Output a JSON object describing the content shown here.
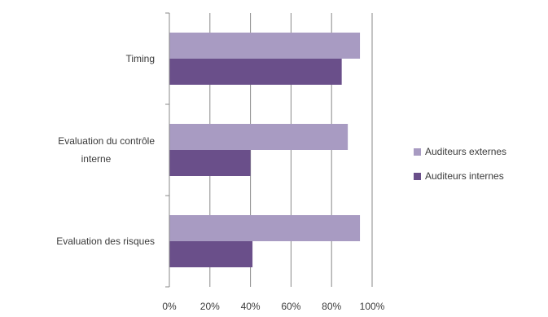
{
  "chart_data": {
    "type": "bar",
    "orientation": "horizontal",
    "categories": [
      "Timing",
      "Evaluation du contrôle interne",
      "Evaluation des risques"
    ],
    "category_label_lines": [
      [
        "Timing"
      ],
      [
        "Evaluation du contrôle",
        "interne"
      ],
      [
        "Evaluation des risques"
      ]
    ],
    "series": [
      {
        "name": "Auditeurs externes",
        "values": [
          94,
          88,
          94
        ],
        "color": "#a89bc2"
      },
      {
        "name": "Auditeurs internes",
        "values": [
          85,
          40,
          41
        ],
        "color": "#6a4f8a"
      }
    ],
    "x_ticks": [
      "0%",
      "20%",
      "40%",
      "60%",
      "80%",
      "100%"
    ],
    "xlim": [
      0,
      100
    ],
    "grid": "vertical",
    "legend_position": "right",
    "gridline_color": "#888888"
  }
}
